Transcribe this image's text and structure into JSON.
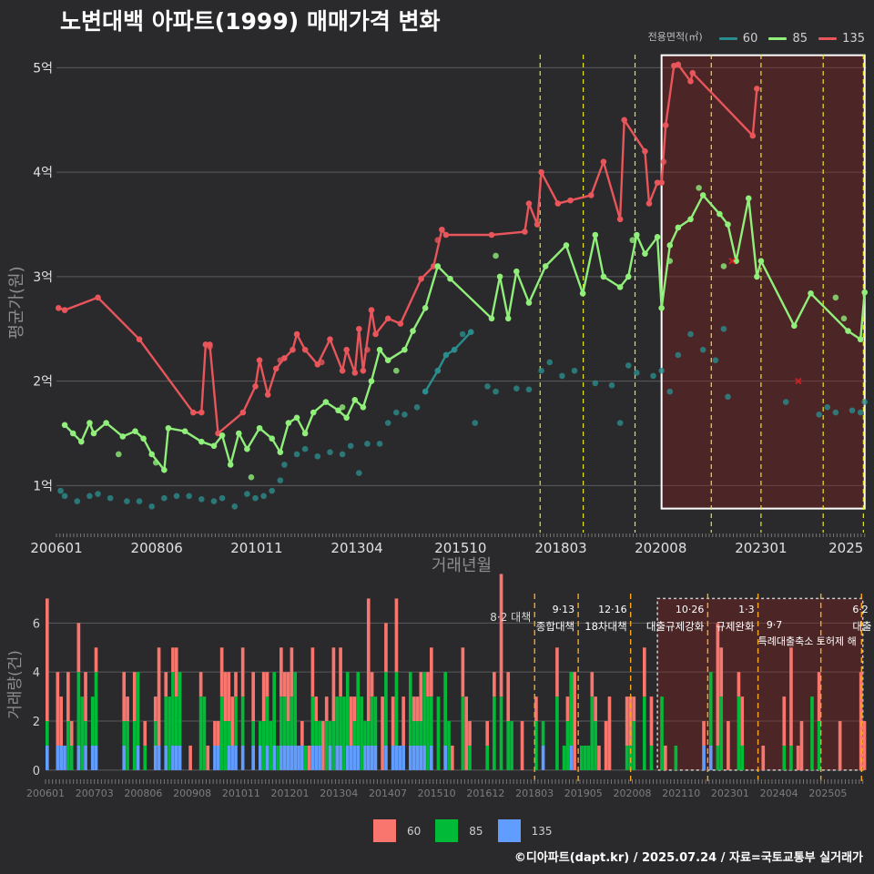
{
  "title": "노변대백 아파트(1999) 매매가격 변화",
  "legend": {
    "title": "전용면적(㎡)",
    "items": [
      {
        "label": "60",
        "color": "#2a8c8c"
      },
      {
        "label": "85",
        "color": "#90ee7a"
      },
      {
        "label": "135",
        "color": "#e8555a"
      }
    ]
  },
  "bar_legend": [
    {
      "label": "60",
      "color": "#f8766d"
    },
    {
      "label": "85",
      "color": "#00ba38"
    },
    {
      "label": "135",
      "color": "#619cff"
    }
  ],
  "footer": "©디아파트(dapt.kr) / 2025.07.24 / 자료=국토교통부 실거래가",
  "chart_data": [
    {
      "type": "line",
      "xlabel": "거래년월",
      "ylabel": "평균가(원)",
      "x_ticks": [
        "200601",
        "200806",
        "201011",
        "201304",
        "201510",
        "201803",
        "202008",
        "202301",
        "2025"
      ],
      "y_ticks": [
        "1억",
        "2억",
        "3억",
        "4억",
        "5억"
      ],
      "ylim": [
        0.55,
        5.3
      ],
      "xlim": [
        2006.0,
        2025.55
      ],
      "y_unit": "억",
      "highlight_range": [
        2020.6,
        2025.5
      ],
      "policy_lines": [
        2017.67,
        2018.71,
        2019.96,
        2021.8,
        2023.0,
        2024.5,
        2025.47
      ],
      "series": [
        {
          "name": "135",
          "color": "#e8555a",
          "points": [
            [
              2006.05,
              2.7
            ],
            [
              2006.2,
              2.68
            ],
            [
              2007.0,
              2.8
            ],
            [
              2008.0,
              2.4
            ],
            [
              2009.3,
              1.7
            ],
            [
              2009.5,
              1.7
            ],
            [
              2009.6,
              2.35
            ],
            [
              2009.7,
              2.35
            ],
            [
              2009.9,
              1.5
            ],
            [
              2010.5,
              1.7
            ],
            [
              2010.8,
              1.95
            ],
            [
              2010.9,
              2.2
            ],
            [
              2011.1,
              1.87
            ],
            [
              2011.3,
              2.12
            ],
            [
              2011.5,
              2.22
            ],
            [
              2011.7,
              2.3
            ],
            [
              2011.8,
              2.45
            ],
            [
              2012.0,
              2.3
            ],
            [
              2012.3,
              2.16
            ],
            [
              2012.6,
              2.4
            ],
            [
              2012.9,
              2.1
            ],
            [
              2013.0,
              2.3
            ],
            [
              2013.2,
              2.08
            ],
            [
              2013.3,
              2.5
            ],
            [
              2013.4,
              2.1
            ],
            [
              2013.6,
              2.68
            ],
            [
              2013.7,
              2.45
            ],
            [
              2014.0,
              2.6
            ],
            [
              2014.3,
              2.55
            ],
            [
              2014.8,
              2.98
            ],
            [
              2015.1,
              3.1
            ],
            [
              2015.3,
              3.45
            ],
            [
              2015.4,
              3.4
            ],
            [
              2016.5,
              3.4
            ],
            [
              2017.3,
              3.43
            ],
            [
              2017.4,
              3.7
            ],
            [
              2017.6,
              3.5
            ],
            [
              2017.7,
              4.0
            ],
            [
              2018.1,
              3.7
            ],
            [
              2018.4,
              3.73
            ],
            [
              2018.9,
              3.78
            ],
            [
              2019.2,
              4.1
            ],
            [
              2019.6,
              3.55
            ],
            [
              2019.7,
              4.5
            ],
            [
              2020.2,
              4.2
            ],
            [
              2020.3,
              3.7
            ],
            [
              2020.5,
              3.9
            ],
            [
              2020.6,
              3.9
            ],
            [
              2020.7,
              4.45
            ],
            [
              2020.9,
              5.02
            ],
            [
              2021.0,
              5.03
            ],
            [
              2021.3,
              4.87
            ],
            [
              2021.35,
              4.95
            ],
            [
              2022.8,
              4.35
            ],
            [
              2022.9,
              4.8
            ]
          ],
          "scatter": [
            [
              2009.7,
              2.33
            ],
            [
              2011.4,
              2.2
            ],
            [
              2012.4,
              2.18
            ],
            [
              2013.5,
              2.3
            ],
            [
              2015.2,
              3.35
            ],
            [
              2020.65,
              4.1
            ]
          ]
        },
        {
          "name": "85",
          "color": "#90ee7a",
          "points": [
            [
              2006.2,
              1.58
            ],
            [
              2006.4,
              1.5
            ],
            [
              2006.6,
              1.42
            ],
            [
              2006.8,
              1.6
            ],
            [
              2006.9,
              1.5
            ],
            [
              2007.2,
              1.6
            ],
            [
              2007.6,
              1.47
            ],
            [
              2007.9,
              1.52
            ],
            [
              2008.1,
              1.45
            ],
            [
              2008.3,
              1.3
            ],
            [
              2008.6,
              1.15
            ],
            [
              2008.7,
              1.55
            ],
            [
              2009.1,
              1.52
            ],
            [
              2009.5,
              1.42
            ],
            [
              2009.8,
              1.38
            ],
            [
              2010.0,
              1.48
            ],
            [
              2010.2,
              1.2
            ],
            [
              2010.4,
              1.5
            ],
            [
              2010.6,
              1.35
            ],
            [
              2010.9,
              1.55
            ],
            [
              2011.2,
              1.45
            ],
            [
              2011.4,
              1.32
            ],
            [
              2011.6,
              1.6
            ],
            [
              2011.8,
              1.65
            ],
            [
              2012.0,
              1.5
            ],
            [
              2012.2,
              1.7
            ],
            [
              2012.5,
              1.8
            ],
            [
              2012.8,
              1.72
            ],
            [
              2013.0,
              1.65
            ],
            [
              2013.2,
              1.82
            ],
            [
              2013.4,
              1.75
            ],
            [
              2013.6,
              2.0
            ],
            [
              2013.8,
              2.3
            ],
            [
              2014.0,
              2.2
            ],
            [
              2014.4,
              2.3
            ],
            [
              2014.6,
              2.48
            ],
            [
              2014.9,
              2.7
            ],
            [
              2015.2,
              3.1
            ],
            [
              2015.5,
              2.98
            ],
            [
              2016.5,
              2.6
            ],
            [
              2016.7,
              3.0
            ],
            [
              2016.9,
              2.6
            ],
            [
              2017.1,
              3.05
            ],
            [
              2017.4,
              2.75
            ],
            [
              2017.8,
              3.1
            ],
            [
              2018.3,
              3.3
            ],
            [
              2018.7,
              2.84
            ],
            [
              2019.0,
              3.4
            ],
            [
              2019.2,
              3.0
            ],
            [
              2019.6,
              2.9
            ],
            [
              2019.8,
              3.0
            ],
            [
              2020.0,
              3.4
            ],
            [
              2020.2,
              3.22
            ],
            [
              2020.5,
              3.38
            ],
            [
              2020.6,
              2.7
            ],
            [
              2020.8,
              3.3
            ],
            [
              2021.0,
              3.47
            ],
            [
              2021.3,
              3.55
            ],
            [
              2021.6,
              3.78
            ],
            [
              2022.0,
              3.6
            ],
            [
              2022.2,
              3.5
            ],
            [
              2022.4,
              3.15
            ],
            [
              2022.7,
              3.75
            ],
            [
              2022.9,
              3.0
            ],
            [
              2023.0,
              3.15
            ],
            [
              2023.8,
              2.53
            ],
            [
              2024.2,
              2.84
            ],
            [
              2025.1,
              2.48
            ],
            [
              2025.4,
              2.4
            ],
            [
              2025.5,
              2.85
            ]
          ],
          "scatter": [
            [
              2007.5,
              1.3
            ],
            [
              2008.4,
              1.22
            ],
            [
              2010.7,
              1.08
            ],
            [
              2012.9,
              1.75
            ],
            [
              2014.2,
              2.1
            ],
            [
              2016.6,
              3.2
            ],
            [
              2019.9,
              3.35
            ],
            [
              2020.8,
              3.15
            ],
            [
              2021.5,
              3.85
            ],
            [
              2022.1,
              3.1
            ],
            [
              2024.8,
              2.8
            ],
            [
              2025.0,
              2.6
            ]
          ],
          "markers": [
            [
              2022.3,
              3.15
            ]
          ]
        },
        {
          "name": "60",
          "color": "#2a8c8c",
          "points": [
            [
              2014.9,
              1.9
            ],
            [
              2015.2,
              2.1
            ],
            [
              2015.4,
              2.25
            ],
            [
              2015.6,
              2.3
            ],
            [
              2016.0,
              2.47
            ]
          ],
          "scatter": [
            [
              2006.1,
              0.95
            ],
            [
              2006.2,
              0.9
            ],
            [
              2006.5,
              0.85
            ],
            [
              2006.8,
              0.9
            ],
            [
              2007.0,
              0.92
            ],
            [
              2007.3,
              0.88
            ],
            [
              2007.7,
              0.85
            ],
            [
              2008.0,
              0.85
            ],
            [
              2008.3,
              0.8
            ],
            [
              2008.6,
              0.88
            ],
            [
              2008.9,
              0.9
            ],
            [
              2009.2,
              0.9
            ],
            [
              2009.5,
              0.87
            ],
            [
              2009.8,
              0.85
            ],
            [
              2010.0,
              0.88
            ],
            [
              2010.3,
              0.8
            ],
            [
              2010.6,
              0.92
            ],
            [
              2010.8,
              0.88
            ],
            [
              2011.0,
              0.9
            ],
            [
              2011.2,
              0.95
            ],
            [
              2011.4,
              1.05
            ],
            [
              2011.5,
              1.2
            ],
            [
              2011.8,
              1.3
            ],
            [
              2012.0,
              1.35
            ],
            [
              2012.3,
              1.28
            ],
            [
              2012.6,
              1.32
            ],
            [
              2012.9,
              1.3
            ],
            [
              2013.1,
              1.38
            ],
            [
              2013.3,
              1.12
            ],
            [
              2013.5,
              1.4
            ],
            [
              2013.8,
              1.4
            ],
            [
              2014.0,
              1.6
            ],
            [
              2014.2,
              1.7
            ],
            [
              2014.4,
              1.68
            ],
            [
              2014.7,
              1.75
            ],
            [
              2015.8,
              2.45
            ],
            [
              2016.1,
              1.6
            ],
            [
              2016.4,
              1.95
            ],
            [
              2016.6,
              1.9
            ],
            [
              2017.1,
              1.93
            ],
            [
              2017.4,
              1.92
            ],
            [
              2017.7,
              2.1
            ],
            [
              2017.9,
              2.18
            ],
            [
              2018.2,
              2.05
            ],
            [
              2018.5,
              2.1
            ],
            [
              2019.0,
              1.98
            ],
            [
              2019.4,
              1.96
            ],
            [
              2019.6,
              1.6
            ],
            [
              2019.8,
              2.15
            ],
            [
              2020.0,
              2.08
            ],
            [
              2020.4,
              2.05
            ],
            [
              2020.6,
              2.1
            ],
            [
              2020.8,
              1.9
            ],
            [
              2021.0,
              2.25
            ],
            [
              2021.3,
              2.45
            ],
            [
              2021.6,
              2.3
            ],
            [
              2021.9,
              2.2
            ],
            [
              2022.1,
              2.5
            ],
            [
              2022.2,
              1.85
            ],
            [
              2023.6,
              1.8
            ],
            [
              2024.4,
              1.68
            ],
            [
              2024.6,
              1.75
            ],
            [
              2024.8,
              1.7
            ],
            [
              2025.2,
              1.72
            ],
            [
              2025.4,
              1.7
            ],
            [
              2025.5,
              1.8
            ]
          ],
          "markers": [
            [
              2023.9,
              2.0
            ]
          ]
        }
      ]
    },
    {
      "type": "bar",
      "ylabel": "거래량(건)",
      "x_ticks": [
        "200601",
        "200703",
        "200806",
        "200908",
        "201011",
        "201201",
        "201304",
        "201407",
        "201510",
        "201612",
        "201803",
        "201905",
        "202008",
        "202110",
        "202301",
        "202404",
        "202505"
      ],
      "y_ticks": [
        "0",
        "2",
        "4",
        "6"
      ],
      "ylim": [
        -0.3,
        7.2
      ],
      "xlim": [
        2006.0,
        2025.55
      ],
      "highlight_range": [
        2020.6,
        2025.5
      ],
      "policy_lines": [
        2017.67,
        2018.71,
        2019.96,
        2021.8,
        2023.0,
        2024.5,
        2025.47
      ],
      "policy_labels": [
        {
          "x": 2017.67,
          "date": "8·2 대책",
          "text": ""
        },
        {
          "x": 2018.71,
          "date": "9·13",
          "text": "종합대책"
        },
        {
          "x": 2019.96,
          "date": "12·16",
          "text": "18차대책"
        },
        {
          "x": 2021.8,
          "date": "10·26",
          "text": "대출규제강화"
        },
        {
          "x": 2023.0,
          "date": "1·3",
          "text": "규제완화"
        },
        {
          "x": 2024.0,
          "date": "9·7",
          "text": "특례대출축소 토허제 해"
        },
        {
          "x": 2025.47,
          "date": "6·2",
          "text": "대출"
        }
      ],
      "series": [
        {
          "name": "60",
          "color": "#f8766d",
          "note": "stacked top segment"
        },
        {
          "name": "85",
          "color": "#00ba38",
          "note": "stacked middle segment"
        },
        {
          "name": "135",
          "color": "#619cff",
          "note": "stacked base segment"
        }
      ]
    }
  ]
}
